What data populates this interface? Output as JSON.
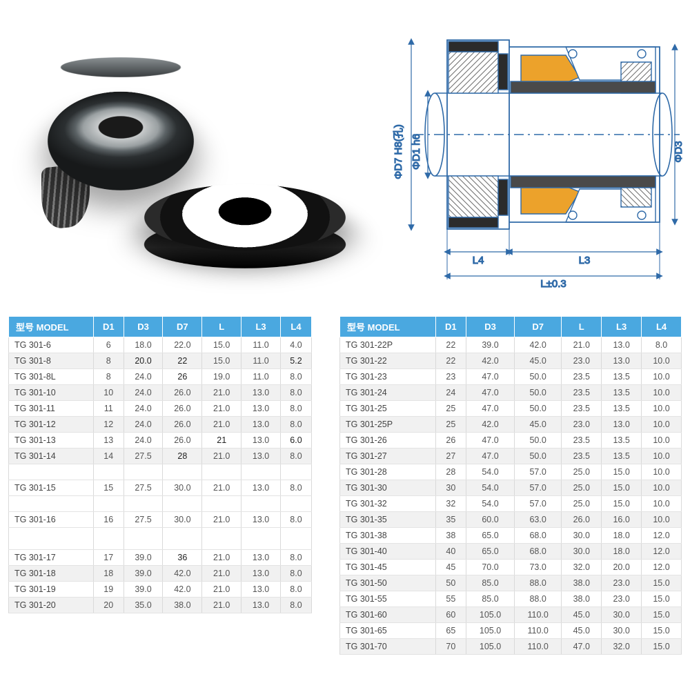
{
  "diagram": {
    "labels": {
      "d7": "ΦD7 H8(孔)",
      "d1": "ΦD1 h6",
      "d3": "ΦD3",
      "l4": "L4",
      "l3": "L3",
      "l": "L±0.3"
    },
    "colors": {
      "stroke": "#2f6aa8",
      "fill_rubber": "#3b3b3b",
      "fill_spring": "#eca22b",
      "fill_hatch": "#7a7a7a",
      "shaft": "#ffffff"
    },
    "line_width": 1.6
  },
  "tables": {
    "header_bg": "#4aa8e0",
    "header_fg": "#ffffff",
    "row_alt_bg": "#f1f1f1",
    "border_color": "#d9d9d9",
    "columns": [
      "型号 MODEL",
      "D1",
      "D3",
      "D7",
      "L",
      "L3",
      "L4"
    ],
    "left_structure": [
      {
        "type": "row",
        "alt": false,
        "cells": [
          "TG 301-6",
          "6",
          "18.0",
          "22.0",
          "15.0",
          "11.0",
          "4.0"
        ]
      },
      {
        "type": "row",
        "alt": true,
        "cells": [
          "TG 301-8",
          "8",
          "20.0",
          "22",
          "15.0",
          "11.0",
          "5.2"
        ],
        "edited": [
          2,
          3,
          6
        ]
      },
      {
        "type": "row",
        "alt": false,
        "cells": [
          "TG 301-8L",
          "8",
          "24.0",
          "26",
          "19.0",
          "11.0",
          "8.0"
        ],
        "edited": [
          3
        ]
      },
      {
        "type": "row",
        "alt": true,
        "cells": [
          "TG 301-10",
          "10",
          "24.0",
          "26.0",
          "21.0",
          "13.0",
          "8.0"
        ]
      },
      {
        "type": "row",
        "alt": false,
        "cells": [
          "TG 301-11",
          "11",
          "24.0",
          "26.0",
          "21.0",
          "13.0",
          "8.0"
        ]
      },
      {
        "type": "row",
        "alt": true,
        "cells": [
          "TG 301-12",
          "12",
          "24.0",
          "26.0",
          "21.0",
          "13.0",
          "8.0"
        ]
      },
      {
        "type": "row",
        "alt": false,
        "cells": [
          "TG 301-13",
          "13",
          "24.0",
          "26.0",
          "21",
          "13.0",
          "6.0"
        ],
        "edited": [
          4,
          6
        ]
      },
      {
        "type": "row",
        "alt": true,
        "cells": [
          "TG 301-14",
          "14",
          "27.5",
          "28",
          "21.0",
          "13.0",
          "8.0"
        ],
        "edited": [
          3
        ]
      },
      {
        "type": "gap"
      },
      {
        "type": "row",
        "alt": false,
        "cells": [
          "TG 301-15",
          "15",
          "27.5",
          "30.0",
          "21.0",
          "13.0",
          "8.0"
        ]
      },
      {
        "type": "gap"
      },
      {
        "type": "row",
        "alt": false,
        "cells": [
          "TG 301-16",
          "16",
          "27.5",
          "30.0",
          "21.0",
          "13.0",
          "8.0"
        ]
      },
      {
        "type": "gap-big"
      },
      {
        "type": "row",
        "alt": false,
        "cells": [
          "TG 301-17",
          "17",
          "39.0",
          "36",
          "21.0",
          "13.0",
          "8.0"
        ],
        "edited": [
          3
        ]
      },
      {
        "type": "row",
        "alt": true,
        "cells": [
          "TG 301-18",
          "18",
          "39.0",
          "42.0",
          "21.0",
          "13.0",
          "8.0"
        ]
      },
      {
        "type": "row",
        "alt": false,
        "cells": [
          "TG 301-19",
          "19",
          "39.0",
          "42.0",
          "21.0",
          "13.0",
          "8.0"
        ]
      },
      {
        "type": "row",
        "alt": true,
        "cells": [
          "TG 301-20",
          "20",
          "35.0",
          "38.0",
          "21.0",
          "13.0",
          "8.0"
        ]
      }
    ],
    "right_rows": [
      [
        "TG 301-22P",
        "22",
        "39.0",
        "42.0",
        "21.0",
        "13.0",
        "8.0"
      ],
      [
        "TG 301-22",
        "22",
        "42.0",
        "45.0",
        "23.0",
        "13.0",
        "10.0"
      ],
      [
        "TG 301-23",
        "23",
        "47.0",
        "50.0",
        "23.5",
        "13.5",
        "10.0"
      ],
      [
        "TG 301-24",
        "24",
        "47.0",
        "50.0",
        "23.5",
        "13.5",
        "10.0"
      ],
      [
        "TG 301-25",
        "25",
        "47.0",
        "50.0",
        "23.5",
        "13.5",
        "10.0"
      ],
      [
        "TG 301-25P",
        "25",
        "42.0",
        "45.0",
        "23.0",
        "13.0",
        "10.0"
      ],
      [
        "TG 301-26",
        "26",
        "47.0",
        "50.0",
        "23.5",
        "13.5",
        "10.0"
      ],
      [
        "TG 301-27",
        "27",
        "47.0",
        "50.0",
        "23.5",
        "13.5",
        "10.0"
      ],
      [
        "TG 301-28",
        "28",
        "54.0",
        "57.0",
        "25.0",
        "15.0",
        "10.0"
      ],
      [
        "TG 301-30",
        "30",
        "54.0",
        "57.0",
        "25.0",
        "15.0",
        "10.0"
      ],
      [
        "TG 301-32",
        "32",
        "54.0",
        "57.0",
        "25.0",
        "15.0",
        "10.0"
      ],
      [
        "TG 301-35",
        "35",
        "60.0",
        "63.0",
        "26.0",
        "16.0",
        "10.0"
      ],
      [
        "TG 301-38",
        "38",
        "65.0",
        "68.0",
        "30.0",
        "18.0",
        "12.0"
      ],
      [
        "TG 301-40",
        "40",
        "65.0",
        "68.0",
        "30.0",
        "18.0",
        "12.0"
      ],
      [
        "TG 301-45",
        "45",
        "70.0",
        "73.0",
        "32.0",
        "20.0",
        "12.0"
      ],
      [
        "TG 301-50",
        "50",
        "85.0",
        "88.0",
        "38.0",
        "23.0",
        "15.0"
      ],
      [
        "TG 301-55",
        "55",
        "85.0",
        "88.0",
        "38.0",
        "23.0",
        "15.0"
      ],
      [
        "TG 301-60",
        "60",
        "105.0",
        "110.0",
        "45.0",
        "30.0",
        "15.0"
      ],
      [
        "TG 301-65",
        "65",
        "105.0",
        "110.0",
        "45.0",
        "30.0",
        "15.0"
      ],
      [
        "TG 301-70",
        "70",
        "105.0",
        "110.0",
        "47.0",
        "32.0",
        "15.0"
      ]
    ]
  }
}
